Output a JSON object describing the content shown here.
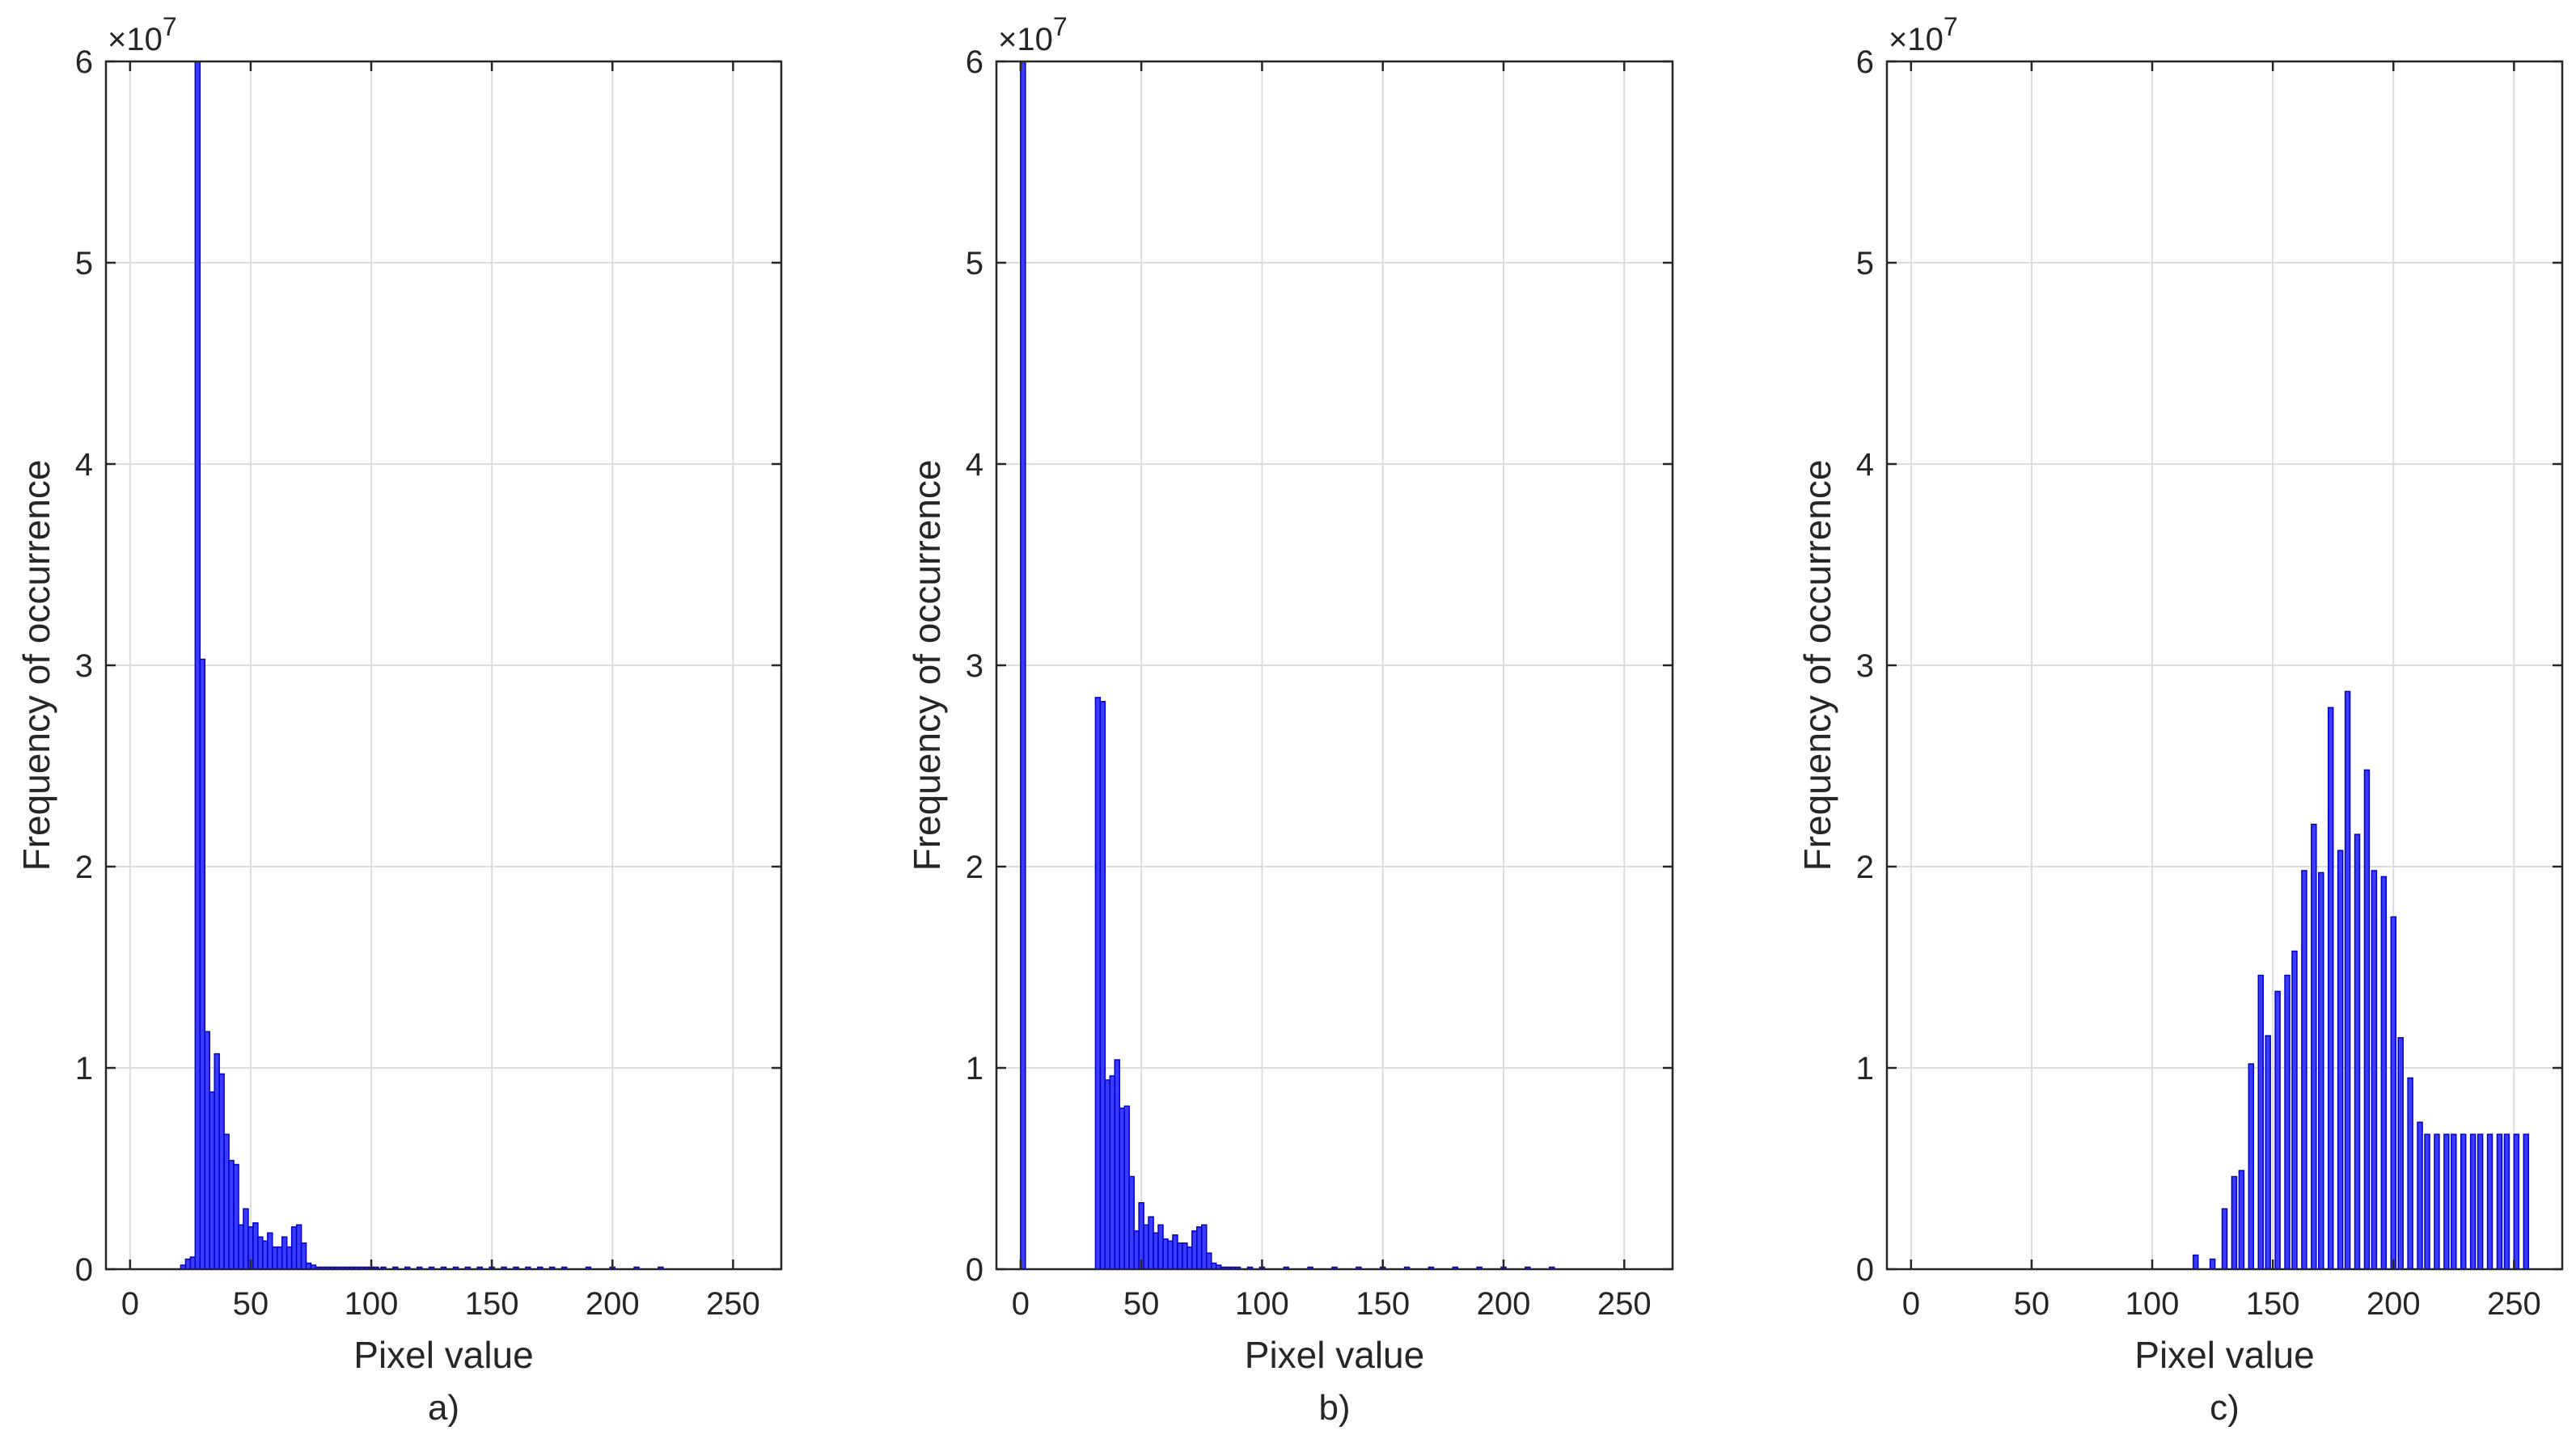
{
  "figure": {
    "bar_color": "#3b3bff",
    "bar_edge_color": "#0000cc"
  },
  "chart_data": [
    {
      "type": "bar",
      "panel_label": "a)",
      "xlabel": "Pixel value",
      "ylabel": "Frequency of occurrence",
      "exponent_label": "×10",
      "exponent_power": "7",
      "x_ticks": [
        "0",
        "50",
        "100",
        "150",
        "200",
        "250"
      ],
      "y_ticks": [
        "0",
        "1",
        "2",
        "3",
        "4",
        "5",
        "6"
      ],
      "xlim": [
        -10,
        270
      ],
      "ylim": [
        0,
        6
      ],
      "y_multiplier": 10000000,
      "grid": true,
      "bin_width": 2,
      "x": [
        22,
        24,
        26,
        28,
        30,
        32,
        34,
        36,
        38,
        40,
        42,
        44,
        46,
        48,
        50,
        52,
        54,
        56,
        58,
        60,
        62,
        64,
        66,
        68,
        70,
        72,
        74,
        76,
        78,
        80,
        82,
        84,
        86,
        88,
        90,
        92,
        94,
        96,
        98,
        100,
        102,
        105,
        110,
        115,
        120,
        125,
        130,
        135,
        140,
        145,
        150,
        155,
        160,
        165,
        170,
        175,
        180,
        190,
        200,
        210,
        220
      ],
      "values": [
        0.02,
        0.05,
        0.06,
        6.0,
        3.03,
        1.18,
        0.88,
        1.07,
        0.97,
        0.67,
        0.54,
        0.52,
        0.22,
        0.3,
        0.21,
        0.23,
        0.16,
        0.14,
        0.18,
        0.11,
        0.11,
        0.16,
        0.11,
        0.21,
        0.22,
        0.13,
        0.03,
        0.02,
        0.01,
        0.01,
        0.01,
        0.01,
        0.01,
        0.01,
        0.01,
        0.01,
        0.01,
        0.01,
        0.01,
        0.01,
        0.01,
        0.01,
        0.01,
        0.01,
        0.01,
        0.01,
        0.01,
        0.01,
        0.01,
        0.01,
        0.01,
        0.01,
        0.01,
        0.01,
        0.01,
        0.01,
        0.01,
        0.01,
        0.01,
        0.01,
        0.01
      ]
    },
    {
      "type": "bar",
      "panel_label": "b)",
      "xlabel": "Pixel value",
      "ylabel": "Frequency of occurrence",
      "exponent_label": "×10",
      "exponent_power": "7",
      "x_ticks": [
        "0",
        "50",
        "100",
        "150",
        "200",
        "250"
      ],
      "y_ticks": [
        "0",
        "1",
        "2",
        "3",
        "4",
        "5",
        "6"
      ],
      "xlim": [
        -10,
        270
      ],
      "ylim": [
        0,
        6
      ],
      "y_multiplier": 10000000,
      "grid": true,
      "bin_width": 2,
      "x": [
        1,
        32,
        34,
        36,
        38,
        40,
        42,
        44,
        46,
        48,
        50,
        52,
        54,
        56,
        58,
        60,
        62,
        64,
        66,
        68,
        70,
        72,
        74,
        76,
        78,
        80,
        82,
        84,
        86,
        88,
        90,
        95,
        100,
        110,
        120,
        130,
        140,
        150,
        160,
        170,
        180,
        190,
        200,
        210,
        220
      ],
      "values": [
        6.0,
        2.84,
        2.82,
        0.94,
        0.96,
        1.04,
        0.8,
        0.81,
        0.46,
        0.19,
        0.33,
        0.22,
        0.26,
        0.18,
        0.22,
        0.15,
        0.14,
        0.17,
        0.13,
        0.13,
        0.11,
        0.19,
        0.21,
        0.22,
        0.08,
        0.03,
        0.02,
        0.01,
        0.01,
        0.01,
        0.01,
        0.01,
        0.01,
        0.01,
        0.01,
        0.01,
        0.01,
        0.01,
        0.01,
        0.01,
        0.01,
        0.01,
        0.01,
        0.01,
        0.01
      ]
    },
    {
      "type": "bar",
      "panel_label": "c)",
      "xlabel": "Pixel value",
      "ylabel": "Frequency of occurrence",
      "exponent_label": "×10",
      "exponent_power": "7",
      "x_ticks": [
        "0",
        "50",
        "100",
        "150",
        "200",
        "250"
      ],
      "y_ticks": [
        "0",
        "1",
        "2",
        "3",
        "4",
        "5",
        "6"
      ],
      "xlim": [
        -10,
        270
      ],
      "ylim": [
        0,
        6
      ],
      "y_multiplier": 10000000,
      "grid": true,
      "bin_width": 2,
      "x": [
        118,
        125,
        130,
        134,
        137,
        141,
        145,
        148,
        152,
        156,
        159,
        163,
        167,
        170,
        174,
        178,
        181,
        185,
        189,
        192,
        196,
        200,
        203,
        207,
        211,
        214,
        218,
        222,
        225,
        229,
        233,
        236,
        240,
        244,
        247,
        251,
        255
      ],
      "values": [
        0.07,
        0.05,
        0.3,
        0.46,
        0.49,
        1.02,
        1.46,
        1.16,
        1.38,
        1.46,
        1.58,
        1.98,
        2.21,
        1.97,
        2.79,
        2.08,
        2.87,
        2.16,
        2.48,
        1.98,
        1.95,
        1.75,
        1.15,
        0.95,
        0.73,
        0.67,
        0.67,
        0.67,
        0.67,
        0.67,
        0.67,
        0.67,
        0.67,
        0.67,
        0.67,
        0.67,
        0.67
      ]
    }
  ]
}
